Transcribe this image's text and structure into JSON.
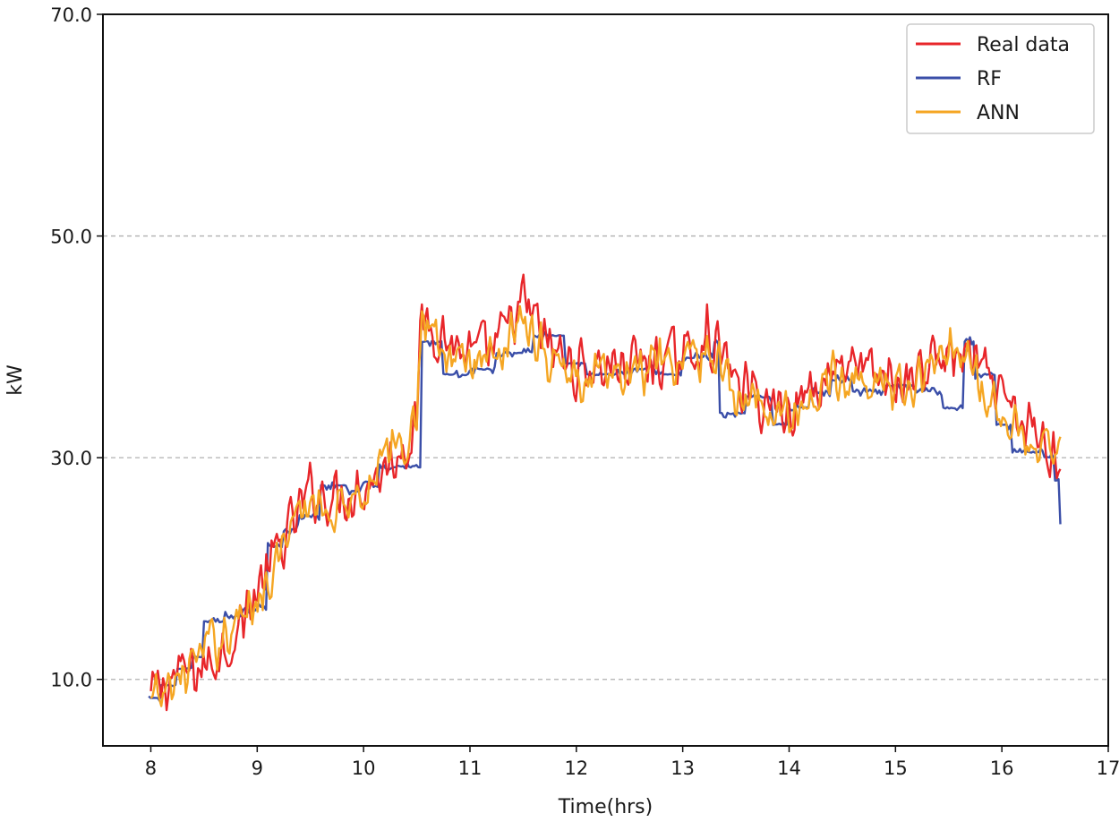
{
  "chart_data": {
    "type": "line",
    "title": "",
    "xlabel": "Time(hrs)",
    "ylabel": "kW",
    "xlim": [
      7.55,
      17.0
    ],
    "ylim": [
      4.0,
      70.0
    ],
    "xticks": [
      8,
      9,
      10,
      11,
      12,
      13,
      14,
      15,
      16,
      17
    ],
    "xtick_labels": [
      "8",
      "9",
      "10",
      "11",
      "12",
      "13",
      "14",
      "15",
      "16",
      "17"
    ],
    "yticks": [
      10,
      30,
      50,
      70
    ],
    "ytick_labels": [
      "10.0",
      "30.0",
      "50.0",
      "70.0"
    ],
    "grid": "horizontal dashed at y ticks",
    "legend_position": "top-right",
    "x_range_of_data": [
      8.0,
      16.55
    ],
    "series": [
      {
        "name": "Real data",
        "color": "#e8262a",
        "anchors": [
          [
            8.0,
            8.5
          ],
          [
            8.25,
            10.5
          ],
          [
            8.5,
            11.0
          ],
          [
            8.75,
            13.5
          ],
          [
            9.0,
            18.0
          ],
          [
            9.25,
            22.5
          ],
          [
            9.5,
            27.0
          ],
          [
            9.75,
            26.5
          ],
          [
            10.0,
            27.5
          ],
          [
            10.25,
            29.5
          ],
          [
            10.5,
            33.0
          ],
          [
            10.55,
            43.0
          ],
          [
            10.75,
            41.0
          ],
          [
            11.0,
            39.0
          ],
          [
            11.25,
            40.0
          ],
          [
            11.5,
            44.0
          ],
          [
            11.75,
            40.0
          ],
          [
            12.0,
            38.0
          ],
          [
            12.5,
            38.5
          ],
          [
            13.0,
            39.0
          ],
          [
            13.25,
            41.0
          ],
          [
            13.5,
            37.0
          ],
          [
            13.75,
            35.0
          ],
          [
            14.0,
            34.5
          ],
          [
            14.25,
            36.5
          ],
          [
            14.5,
            39.0
          ],
          [
            14.75,
            37.5
          ],
          [
            15.0,
            36.5
          ],
          [
            15.25,
            38.0
          ],
          [
            15.5,
            39.5
          ],
          [
            15.75,
            38.5
          ],
          [
            16.0,
            35.0
          ],
          [
            16.25,
            32.5
          ],
          [
            16.55,
            30.0
          ]
        ],
        "noise_amplitude": 3.2
      },
      {
        "name": "RF",
        "color": "#3a4ea8",
        "steps": [
          [
            7.98,
            8.3
          ],
          [
            8.1,
            9.5
          ],
          [
            8.25,
            11.0
          ],
          [
            8.4,
            12.0
          ],
          [
            8.5,
            15.2
          ],
          [
            8.7,
            15.7
          ],
          [
            8.85,
            16.2
          ],
          [
            9.0,
            16.5
          ],
          [
            9.1,
            22.0
          ],
          [
            9.25,
            23.5
          ],
          [
            9.4,
            24.8
          ],
          [
            9.6,
            27.5
          ],
          [
            9.85,
            27.0
          ],
          [
            10.0,
            27.8
          ],
          [
            10.15,
            29.0
          ],
          [
            10.3,
            29.3
          ],
          [
            10.55,
            40.5
          ],
          [
            10.75,
            37.5
          ],
          [
            11.0,
            38.0
          ],
          [
            11.25,
            39.5
          ],
          [
            11.6,
            41.0
          ],
          [
            11.9,
            38.5
          ],
          [
            12.1,
            37.5
          ],
          [
            12.5,
            38.0
          ],
          [
            12.75,
            37.5
          ],
          [
            13.0,
            39.0
          ],
          [
            13.3,
            40.5
          ],
          [
            13.35,
            34.0
          ],
          [
            13.6,
            35.5
          ],
          [
            13.85,
            33.0
          ],
          [
            14.0,
            34.5
          ],
          [
            14.2,
            36.0
          ],
          [
            14.4,
            37.0
          ],
          [
            14.6,
            36.0
          ],
          [
            14.9,
            36.5
          ],
          [
            15.2,
            36.0
          ],
          [
            15.45,
            34.5
          ],
          [
            15.65,
            40.5
          ],
          [
            15.75,
            37.5
          ],
          [
            15.95,
            33.0
          ],
          [
            16.1,
            30.5
          ],
          [
            16.4,
            30.0
          ],
          [
            16.5,
            28.0
          ]
        ],
        "end_point": [
          16.55,
          24.0
        ],
        "noise_amplitude": 0.9
      },
      {
        "name": "ANN",
        "color": "#f5a623",
        "anchors": [
          [
            8.0,
            7.5
          ],
          [
            8.25,
            10.0
          ],
          [
            8.5,
            12.5
          ],
          [
            8.75,
            14.5
          ],
          [
            9.0,
            17.5
          ],
          [
            9.25,
            22.0
          ],
          [
            9.5,
            26.0
          ],
          [
            9.75,
            25.5
          ],
          [
            10.0,
            27.5
          ],
          [
            10.25,
            30.0
          ],
          [
            10.5,
            33.0
          ],
          [
            10.55,
            44.0
          ],
          [
            10.75,
            39.5
          ],
          [
            11.0,
            38.5
          ],
          [
            11.25,
            39.5
          ],
          [
            11.5,
            43.0
          ],
          [
            11.75,
            39.0
          ],
          [
            12.0,
            37.0
          ],
          [
            12.5,
            37.5
          ],
          [
            13.0,
            38.5
          ],
          [
            13.25,
            40.0
          ],
          [
            13.5,
            36.0
          ],
          [
            13.75,
            34.5
          ],
          [
            14.0,
            34.0
          ],
          [
            14.25,
            35.5
          ],
          [
            14.5,
            38.0
          ],
          [
            14.75,
            37.0
          ],
          [
            15.0,
            36.0
          ],
          [
            15.25,
            37.5
          ],
          [
            15.5,
            40.5
          ],
          [
            15.75,
            37.0
          ],
          [
            16.0,
            34.0
          ],
          [
            16.25,
            31.5
          ],
          [
            16.55,
            30.5
          ]
        ],
        "noise_amplitude": 2.8
      }
    ]
  }
}
